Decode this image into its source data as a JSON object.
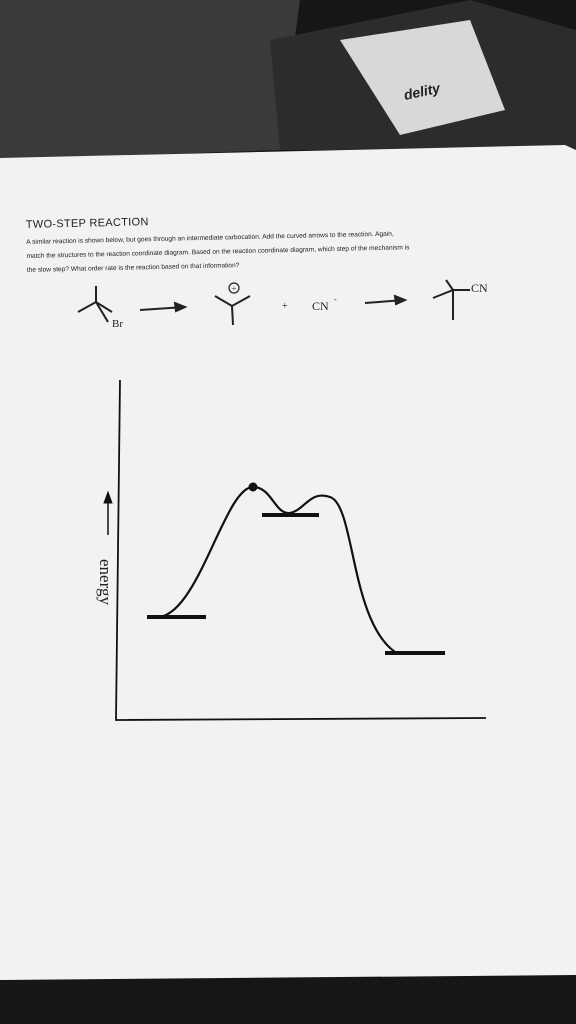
{
  "background": {
    "box_text": "delity"
  },
  "worksheet": {
    "title": "TWO-STEP REACTION",
    "instructions": [
      "A similar reaction is shown below, but goes through an intermediate carbocation.  Add the curved arrows to the reaction.  Again,",
      "match the structures to the reaction coordinate diagram.  Based on the reaction coordinate diagram, which step of the mechanism is",
      "the slow step?  What order rate is the reaction based on that information?"
    ],
    "reaction": {
      "cation_charge": "+",
      "leaving_group": "Br",
      "plus": "+",
      "nucleophile": "CN",
      "nucleophile_charge": "-",
      "product_group": "CN"
    },
    "diagram": {
      "y_axis_label": "energy"
    }
  }
}
